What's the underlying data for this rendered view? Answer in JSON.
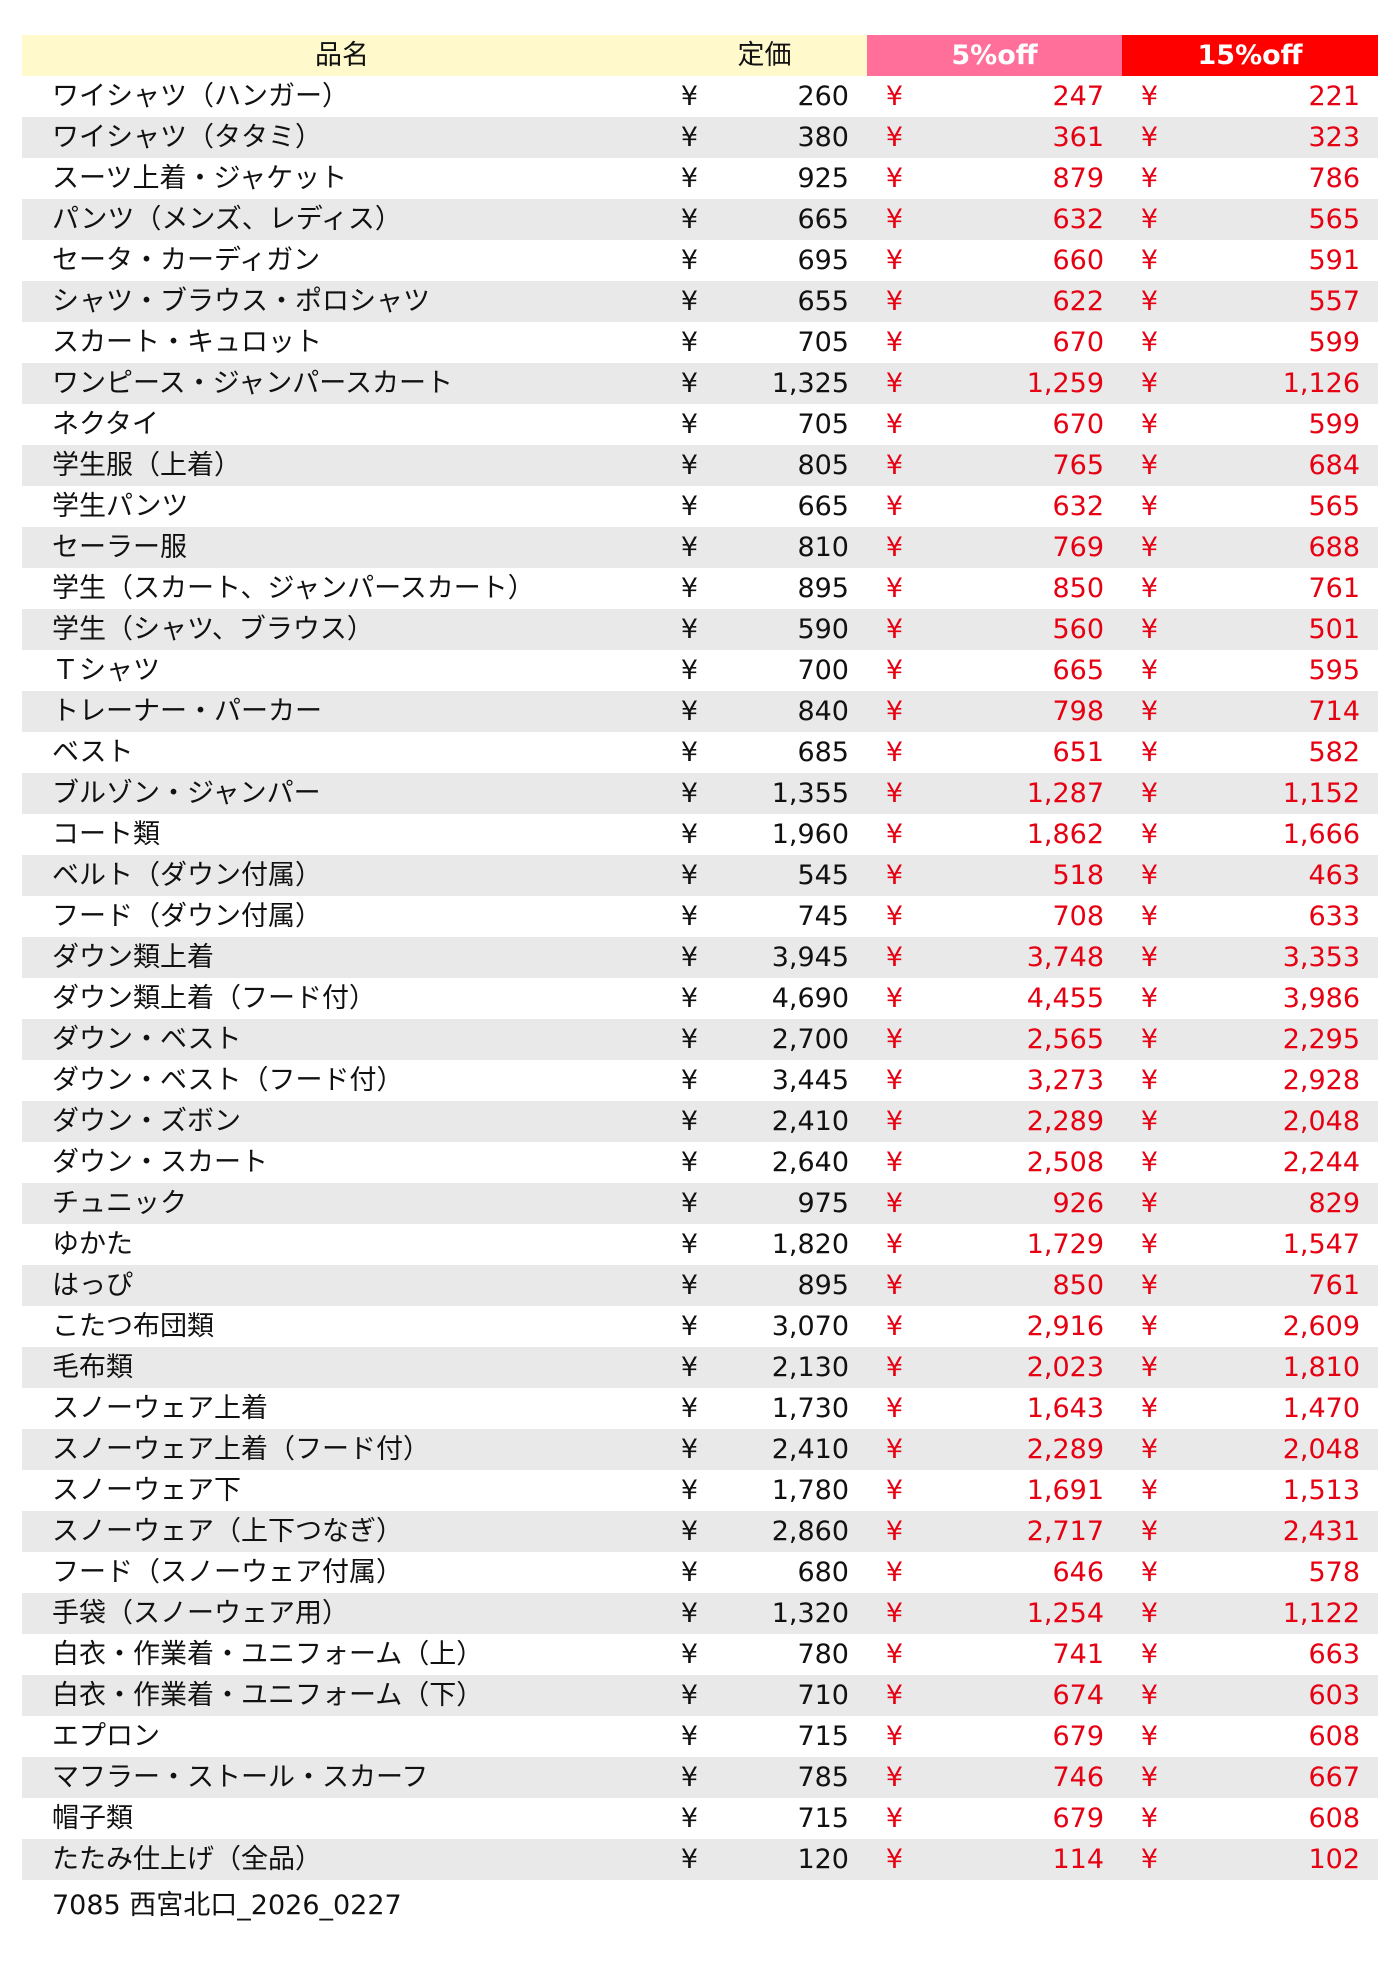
{
  "header": {
    "name": "品名",
    "list_price": "定価",
    "off5": "5%off",
    "off15": "15%off"
  },
  "currency": "¥",
  "colors": {
    "header_bg": "#fff9cc",
    "off5_bg": "#ff6f9a",
    "off15_bg": "#ff0000",
    "discount_text": "#e60012",
    "stripe": "#e9e9e9"
  },
  "rows": [
    {
      "name": "ワイシャツ（ハンガー）",
      "price": "260",
      "off5": "247",
      "off15": "221"
    },
    {
      "name": "ワイシャツ（タタミ）",
      "price": "380",
      "off5": "361",
      "off15": "323"
    },
    {
      "name": "スーツ上着・ジャケット",
      "price": "925",
      "off5": "879",
      "off15": "786"
    },
    {
      "name": "パンツ（メンズ、レディス）",
      "price": "665",
      "off5": "632",
      "off15": "565"
    },
    {
      "name": "セータ・カーディガン",
      "price": "695",
      "off5": "660",
      "off15": "591"
    },
    {
      "name": "シャツ・ブラウス・ポロシャツ",
      "price": "655",
      "off5": "622",
      "off15": "557"
    },
    {
      "name": "スカート・キュロット",
      "price": "705",
      "off5": "670",
      "off15": "599"
    },
    {
      "name": "ワンピース・ジャンパースカート",
      "price": "1,325",
      "off5": "1,259",
      "off15": "1,126"
    },
    {
      "name": "ネクタイ",
      "price": "705",
      "off5": "670",
      "off15": "599"
    },
    {
      "name": "学生服（上着）",
      "price": "805",
      "off5": "765",
      "off15": "684"
    },
    {
      "name": "学生パンツ",
      "price": "665",
      "off5": "632",
      "off15": "565"
    },
    {
      "name": "セーラー服",
      "price": "810",
      "off5": "769",
      "off15": "688"
    },
    {
      "name": "学生（スカート、ジャンパースカート）",
      "price": "895",
      "off5": "850",
      "off15": "761"
    },
    {
      "name": "学生（シャツ、ブラウス）",
      "price": "590",
      "off5": "560",
      "off15": "501"
    },
    {
      "name": "Ｔシャツ",
      "price": "700",
      "off5": "665",
      "off15": "595"
    },
    {
      "name": "トレーナー・パーカー",
      "price": "840",
      "off5": "798",
      "off15": "714"
    },
    {
      "name": "ベスト",
      "price": "685",
      "off5": "651",
      "off15": "582"
    },
    {
      "name": "ブルゾン・ジャンパー",
      "price": "1,355",
      "off5": "1,287",
      "off15": "1,152"
    },
    {
      "name": "コート類",
      "price": "1,960",
      "off5": "1,862",
      "off15": "1,666"
    },
    {
      "name": "ベルト（ダウン付属）",
      "price": "545",
      "off5": "518",
      "off15": "463"
    },
    {
      "name": "フード（ダウン付属）",
      "price": "745",
      "off5": "708",
      "off15": "633"
    },
    {
      "name": "ダウン類上着",
      "price": "3,945",
      "off5": "3,748",
      "off15": "3,353"
    },
    {
      "name": "ダウン類上着（フード付）",
      "price": "4,690",
      "off5": "4,455",
      "off15": "3,986"
    },
    {
      "name": "ダウン・ベスト",
      "price": "2,700",
      "off5": "2,565",
      "off15": "2,295"
    },
    {
      "name": "ダウン・ベスト（フード付）",
      "price": "3,445",
      "off5": "3,273",
      "off15": "2,928"
    },
    {
      "name": "ダウン・ズボン",
      "price": "2,410",
      "off5": "2,289",
      "off15": "2,048"
    },
    {
      "name": "ダウン・スカート",
      "price": "2,640",
      "off5": "2,508",
      "off15": "2,244"
    },
    {
      "name": "チュニック",
      "price": "975",
      "off5": "926",
      "off15": "829"
    },
    {
      "name": "ゆかた",
      "price": "1,820",
      "off5": "1,729",
      "off15": "1,547"
    },
    {
      "name": "はっぴ",
      "price": "895",
      "off5": "850",
      "off15": "761"
    },
    {
      "name": "こたつ布団類",
      "price": "3,070",
      "off5": "2,916",
      "off15": "2,609"
    },
    {
      "name": "毛布類",
      "price": "2,130",
      "off5": "2,023",
      "off15": "1,810"
    },
    {
      "name": "スノーウェア上着",
      "price": "1,730",
      "off5": "1,643",
      "off15": "1,470"
    },
    {
      "name": "スノーウェア上着（フード付）",
      "price": "2,410",
      "off5": "2,289",
      "off15": "2,048"
    },
    {
      "name": "スノーウェア下",
      "price": "1,780",
      "off5": "1,691",
      "off15": "1,513"
    },
    {
      "name": "スノーウェア（上下つなぎ）",
      "price": "2,860",
      "off5": "2,717",
      "off15": "2,431"
    },
    {
      "name": "フード（スノーウェア付属）",
      "price": "680",
      "off5": "646",
      "off15": "578"
    },
    {
      "name": "手袋（スノーウェア用）",
      "price": "1,320",
      "off5": "1,254",
      "off15": "1,122"
    },
    {
      "name": "白衣・作業着・ユニフォーム（上）",
      "price": "780",
      "off5": "741",
      "off15": "663"
    },
    {
      "name": "白衣・作業着・ユニフォーム（下）",
      "price": "710",
      "off5": "674",
      "off15": "603"
    },
    {
      "name": "エプロン",
      "price": "715",
      "off5": "679",
      "off15": "608"
    },
    {
      "name": "マフラー・ストール・スカーフ",
      "price": "785",
      "off5": "746",
      "off15": "667"
    },
    {
      "name": "帽子類",
      "price": "715",
      "off5": "679",
      "off15": "608"
    },
    {
      "name": "たたみ仕上げ（全品）",
      "price": "120",
      "off5": "114",
      "off15": "102"
    }
  ],
  "footer": "7085 西宮北口_2026_0227"
}
